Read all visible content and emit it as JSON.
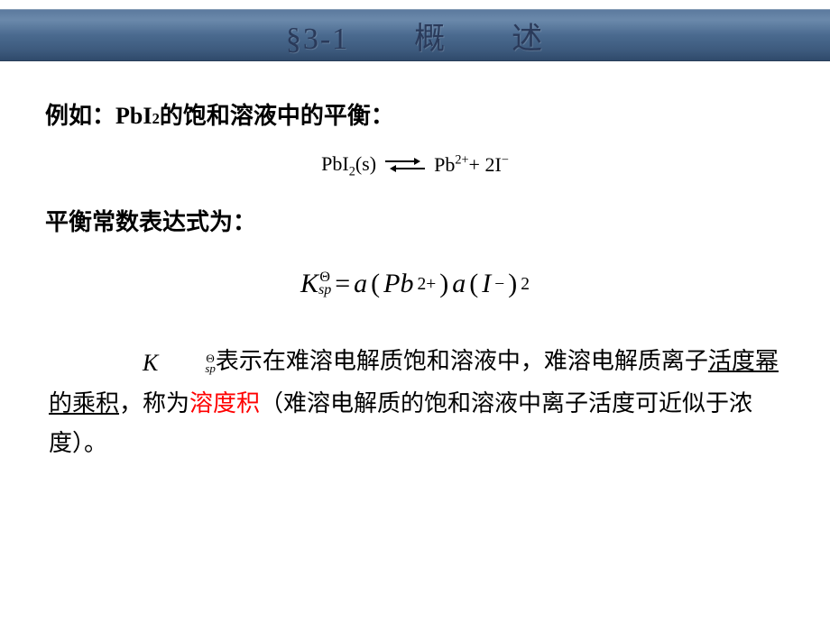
{
  "header": {
    "title": "§3-1　　概　　述"
  },
  "body": {
    "line1_prefix": "例如：PbI",
    "line1_sub": "2",
    "line1_suffix": "的饱和溶液中的平衡：",
    "eq1": {
      "lhs_main": "PbI",
      "lhs_sub": "2",
      "lhs_state": "(s)",
      "rhs_a_main": "Pb",
      "rhs_a_sup": "2+",
      "rhs_plus": "+ 2I",
      "rhs_b_sup": "−"
    },
    "line2": "平衡常数表达式为：",
    "eq2": {
      "K": "K",
      "theta": "Θ",
      "sp": "sp",
      "eq": " = ",
      "a1": "a",
      "open1": "(",
      "pb": "Pb",
      "pb_sup": "2+",
      "close1": ")",
      "a2": "a",
      "open2": "(",
      "I": "I",
      "I_sup": "−",
      "close2": ")",
      "sq": "2"
    },
    "para": {
      "t1": "表示在难溶电解质饱和溶液中，难溶电解质离子",
      "u1": "活度幂的乘积",
      "t2": "，称为",
      "red": "溶度积",
      "t3": "（难溶电解质的饱和溶液中离子活度可近似于浓度）。"
    }
  },
  "colors": {
    "header_text": "#2a3a5a",
    "body_text": "#000000",
    "highlight": "#ff0000",
    "background": "#ffffff"
  }
}
